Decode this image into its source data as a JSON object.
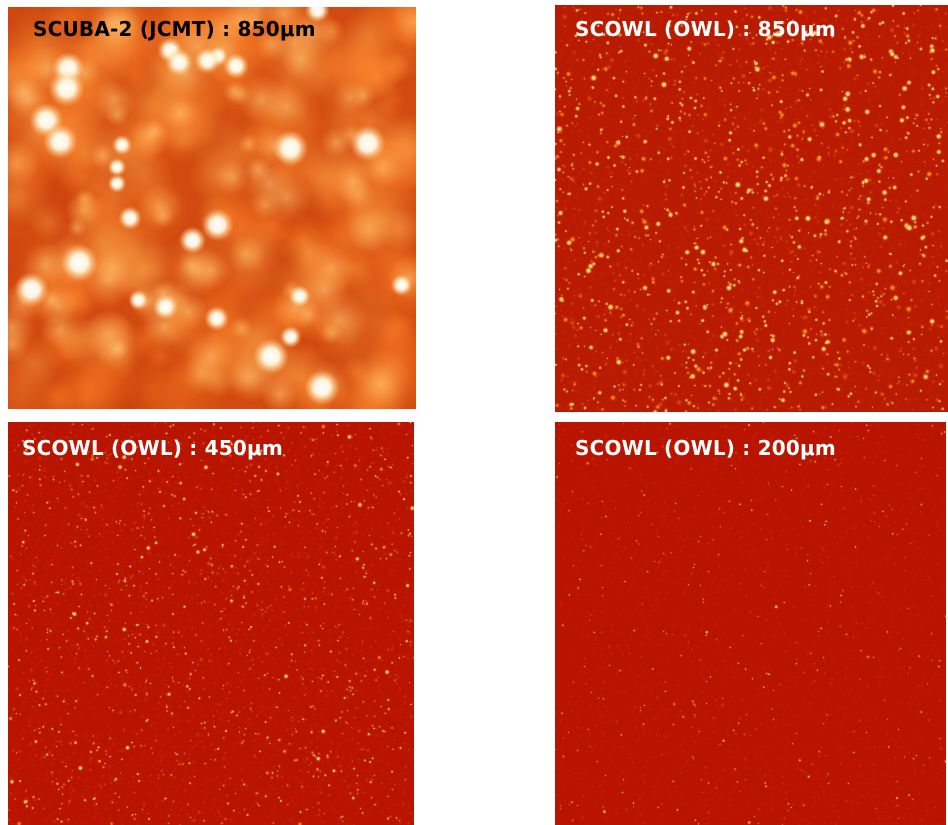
{
  "panels": [
    {
      "id": "scuba",
      "title": "SCUBA-2 (JCMT) : 850μm",
      "title_color": "#000000",
      "style": "smooth",
      "background_color": "#e0581a"
    },
    {
      "id": "owl850",
      "title": "SCOWL (OWL) : 850μm",
      "title_color": "#ffffff",
      "style": "dense-bright",
      "background_color": "#b81a02"
    },
    {
      "id": "owl450",
      "title": "SCOWL (OWL) : 450μm",
      "title_color": "#ffffff",
      "style": "dense-fine",
      "background_color": "#b81400"
    },
    {
      "id": "owl200",
      "title": "SCOWL (OWL) : 200μm",
      "title_color": "#ffffff",
      "style": "sparse-fine",
      "background_color": "#b81400"
    }
  ]
}
